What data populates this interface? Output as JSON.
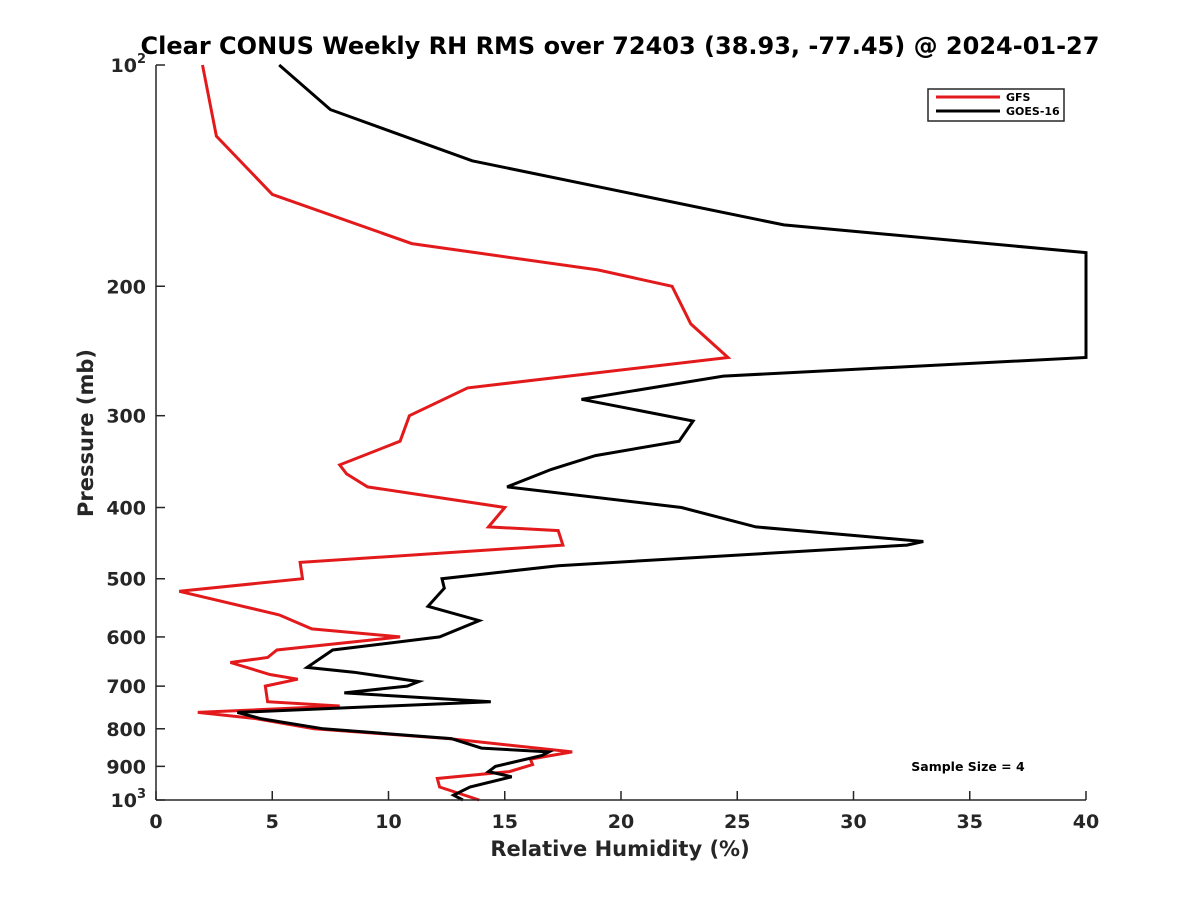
{
  "chart_data": {
    "type": "line",
    "title": "Clear CONUS Weekly RH RMS over 72403 (38.93, -77.45) @ 2024-01-27",
    "xlabel": "Relative Humidity (%)",
    "ylabel": "Pressure (mb)",
    "xlim": [
      0,
      40
    ],
    "ylim": [
      100,
      1000
    ],
    "y_scale": "log",
    "y_reversed": true,
    "grid": false,
    "legend_position": "top-right",
    "x_ticks": [
      0,
      5,
      10,
      15,
      20,
      25,
      30,
      35,
      40
    ],
    "x_tick_labels": [
      "0",
      "5",
      "10",
      "15",
      "20",
      "25",
      "30",
      "35",
      "40"
    ],
    "y_ticks": [
      100,
      200,
      300,
      400,
      500,
      600,
      700,
      800,
      900,
      1000
    ],
    "y_tick_labels": [
      {
        "base": "10",
        "exp": "2"
      },
      {
        "base": "200",
        "exp": ""
      },
      {
        "base": "300",
        "exp": ""
      },
      {
        "base": "400",
        "exp": ""
      },
      {
        "base": "500",
        "exp": ""
      },
      {
        "base": "600",
        "exp": ""
      },
      {
        "base": "700",
        "exp": ""
      },
      {
        "base": "800",
        "exp": ""
      },
      {
        "base": "900",
        "exp": ""
      },
      {
        "base": "10",
        "exp": "3"
      }
    ],
    "annotation": "Sample Size = 4",
    "series": [
      {
        "name": "GFS",
        "color": "#e31a1c",
        "points": [
          [
            2.0,
            100
          ],
          [
            2.6,
            125
          ],
          [
            5.0,
            150
          ],
          [
            11.0,
            175
          ],
          [
            19.0,
            190
          ],
          [
            22.2,
            200
          ],
          [
            23.0,
            225
          ],
          [
            24.6,
            250
          ],
          [
            13.4,
            275
          ],
          [
            10.9,
            300
          ],
          [
            10.5,
            325
          ],
          [
            7.9,
            350
          ],
          [
            8.2,
            360
          ],
          [
            9.1,
            375
          ],
          [
            15.0,
            400
          ],
          [
            14.3,
            425
          ],
          [
            17.3,
            430
          ],
          [
            17.5,
            450
          ],
          [
            6.2,
            475
          ],
          [
            6.3,
            500
          ],
          [
            1.0,
            520
          ],
          [
            5.3,
            560
          ],
          [
            6.7,
            585
          ],
          [
            10.5,
            600
          ],
          [
            5.2,
            625
          ],
          [
            4.8,
            640
          ],
          [
            3.2,
            650
          ],
          [
            4.9,
            675
          ],
          [
            6.1,
            685
          ],
          [
            4.7,
            700
          ],
          [
            4.8,
            735
          ],
          [
            7.9,
            745
          ],
          [
            1.8,
            760
          ],
          [
            4.3,
            775
          ],
          [
            6.8,
            800
          ],
          [
            12.6,
            825
          ],
          [
            17.9,
            860
          ],
          [
            16.1,
            880
          ],
          [
            16.2,
            895
          ],
          [
            15.2,
            915
          ],
          [
            12.1,
            935
          ],
          [
            12.2,
            960
          ],
          [
            13.9,
            1000
          ]
        ]
      },
      {
        "name": "GOES-16",
        "color": "#000000",
        "points": [
          [
            5.3,
            100
          ],
          [
            7.5,
            115
          ],
          [
            13.6,
            135
          ],
          [
            27.0,
            165
          ],
          [
            40.0,
            180
          ],
          [
            40.0,
            250
          ],
          [
            24.4,
            265
          ],
          [
            18.3,
            285
          ],
          [
            23.1,
            305
          ],
          [
            22.5,
            325
          ],
          [
            18.9,
            340
          ],
          [
            17.0,
            355
          ],
          [
            15.1,
            375
          ],
          [
            22.6,
            400
          ],
          [
            25.8,
            425
          ],
          [
            33.0,
            445
          ],
          [
            32.3,
            450
          ],
          [
            17.3,
            480
          ],
          [
            12.3,
            500
          ],
          [
            12.4,
            515
          ],
          [
            11.7,
            545
          ],
          [
            13.9,
            570
          ],
          [
            12.2,
            600
          ],
          [
            7.6,
            625
          ],
          [
            6.5,
            660
          ],
          [
            8.5,
            670
          ],
          [
            11.3,
            690
          ],
          [
            10.8,
            700
          ],
          [
            8.1,
            715
          ],
          [
            14.4,
            735
          ],
          [
            3.5,
            760
          ],
          [
            4.5,
            775
          ],
          [
            7.2,
            800
          ],
          [
            12.7,
            825
          ],
          [
            14.0,
            850
          ],
          [
            16.9,
            860
          ],
          [
            16.6,
            870
          ],
          [
            14.6,
            900
          ],
          [
            14.3,
            915
          ],
          [
            15.3,
            930
          ],
          [
            13.5,
            960
          ],
          [
            12.8,
            985
          ],
          [
            13.2,
            1000
          ]
        ]
      }
    ]
  }
}
